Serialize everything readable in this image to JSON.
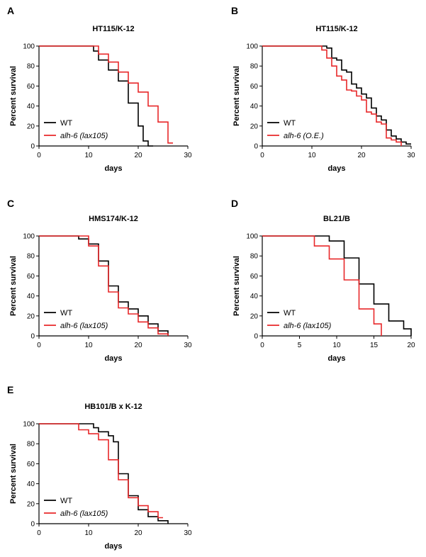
{
  "chart_data": [
    {
      "type": "line",
      "panel": "A",
      "title": "HT115/K-12",
      "xlabel": "days",
      "ylabel": "Percent survival",
      "xlim": [
        0,
        30
      ],
      "ylim": [
        0,
        100
      ],
      "xticks": [
        0,
        10,
        20,
        30
      ],
      "yticks": [
        0,
        20,
        40,
        60,
        80,
        100
      ],
      "legend_position": "bottom-left",
      "series": [
        {
          "name": "WT",
          "color": "#000000",
          "italic": false,
          "x": [
            0,
            10,
            11,
            12,
            14,
            16,
            18,
            19,
            20,
            21,
            22,
            23
          ],
          "y": [
            100,
            100,
            95,
            86,
            76,
            65,
            43,
            43,
            20,
            5,
            0,
            0
          ]
        },
        {
          "name": "alh-6 (lax105)",
          "color": "#e8282a",
          "italic": true,
          "x": [
            0,
            10,
            12,
            14,
            16,
            18,
            20,
            22,
            24,
            26
          ],
          "y": [
            100,
            100,
            92,
            84,
            74,
            63,
            54,
            40,
            24,
            3
          ]
        }
      ]
    },
    {
      "type": "line",
      "panel": "B",
      "title": "HT115/K-12",
      "xlabel": "days",
      "ylabel": "Percent survival",
      "xlim": [
        0,
        30
      ],
      "ylim": [
        0,
        100
      ],
      "xticks": [
        0,
        10,
        20,
        30
      ],
      "yticks": [
        0,
        20,
        40,
        60,
        80,
        100
      ],
      "legend_position": "bottom-left",
      "series": [
        {
          "name": "WT",
          "color": "#000000",
          "italic": false,
          "x": [
            0,
            12,
            13,
            14,
            15,
            16,
            17,
            18,
            19,
            20,
            21,
            22,
            23,
            24,
            25,
            26,
            27,
            28,
            29
          ],
          "y": [
            100,
            100,
            98,
            88,
            86,
            76,
            74,
            62,
            58,
            52,
            48,
            38,
            30,
            26,
            16,
            10,
            7,
            4,
            2
          ]
        },
        {
          "name": "alh-6 (O.E.)",
          "color": "#e8282a",
          "italic": true,
          "x": [
            0,
            11,
            12,
            13,
            14,
            15,
            16,
            17,
            18,
            19,
            20,
            21,
            22,
            23,
            24,
            25,
            26,
            27,
            28
          ],
          "y": [
            100,
            100,
            96,
            88,
            80,
            70,
            66,
            56,
            55,
            50,
            46,
            34,
            32,
            24,
            22,
            8,
            6,
            4,
            0
          ]
        }
      ]
    },
    {
      "type": "line",
      "panel": "C",
      "title": "HMS174/K-12",
      "xlabel": "days",
      "ylabel": "Percent survival",
      "xlim": [
        0,
        30
      ],
      "ylim": [
        0,
        100
      ],
      "xticks": [
        0,
        10,
        20,
        30
      ],
      "yticks": [
        0,
        20,
        40,
        60,
        80,
        100
      ],
      "legend_position": "bottom-left",
      "series": [
        {
          "name": "WT",
          "color": "#000000",
          "italic": false,
          "x": [
            0,
            6,
            8,
            10,
            12,
            14,
            16,
            18,
            20,
            22,
            24,
            26
          ],
          "y": [
            100,
            100,
            97,
            92,
            75,
            50,
            34,
            27,
            20,
            12,
            5,
            0
          ]
        },
        {
          "name": "alh-6 (lax105)",
          "color": "#e8282a",
          "italic": true,
          "x": [
            0,
            8,
            10,
            12,
            14,
            16,
            18,
            20,
            22,
            24,
            26
          ],
          "y": [
            100,
            100,
            90,
            70,
            44,
            28,
            22,
            14,
            8,
            2,
            0
          ]
        }
      ]
    },
    {
      "type": "line",
      "panel": "D",
      "title": "BL21/B",
      "xlabel": "days",
      "ylabel": "Percent survival",
      "xlim": [
        0,
        20
      ],
      "ylim": [
        0,
        100
      ],
      "xticks": [
        0,
        5,
        10,
        15,
        20
      ],
      "yticks": [
        0,
        20,
        40,
        60,
        80,
        100
      ],
      "legend_position": "bottom-left",
      "series": [
        {
          "name": "WT",
          "color": "#000000",
          "italic": false,
          "x": [
            0,
            8,
            9,
            10,
            11,
            12,
            13,
            14,
            15,
            16,
            17,
            18,
            19,
            20
          ],
          "y": [
            100,
            100,
            95,
            95,
            78,
            78,
            52,
            52,
            32,
            32,
            15,
            15,
            7,
            0
          ]
        },
        {
          "name": "alh-6 (lax105)",
          "color": "#e8282a",
          "italic": true,
          "x": [
            0,
            6,
            7,
            8,
            9,
            10,
            11,
            12,
            13,
            14,
            15,
            16
          ],
          "y": [
            100,
            100,
            90,
            90,
            77,
            77,
            56,
            56,
            27,
            27,
            12,
            0
          ]
        }
      ]
    },
    {
      "type": "line",
      "panel": "E",
      "title": "HB101/B x K-12",
      "xlabel": "days",
      "ylabel": "Percent survival",
      "xlim": [
        0,
        30
      ],
      "ylim": [
        0,
        100
      ],
      "xticks": [
        0,
        10,
        20,
        30
      ],
      "yticks": [
        0,
        20,
        40,
        60,
        80,
        100
      ],
      "legend_position": "bottom-left",
      "series": [
        {
          "name": "WT",
          "color": "#000000",
          "italic": false,
          "x": [
            0,
            10,
            11,
            12,
            14,
            15,
            16,
            17,
            18,
            19,
            20,
            22,
            24,
            26
          ],
          "y": [
            100,
            100,
            96,
            92,
            88,
            82,
            50,
            50,
            28,
            28,
            14,
            7,
            3,
            0
          ]
        },
        {
          "name": "alh-6 (lax105)",
          "color": "#e8282a",
          "italic": true,
          "x": [
            0,
            6,
            8,
            10,
            12,
            14,
            16,
            18,
            20,
            22,
            24
          ],
          "y": [
            100,
            100,
            94,
            90,
            84,
            64,
            44,
            26,
            18,
            12,
            6
          ]
        }
      ]
    }
  ]
}
